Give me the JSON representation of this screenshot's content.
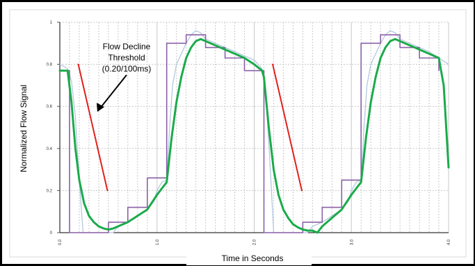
{
  "chart_data": {
    "type": "line",
    "title": "",
    "xlabel": "Time in Seconds",
    "ylabel": "Normalized Flow Signal",
    "xlim": [
      0,
      4.0
    ],
    "ylim": [
      0,
      1
    ],
    "x_tick_labels": [
      "0.0",
      "1.0",
      "2.0",
      "3.0",
      "4.0"
    ],
    "y_tick_labels": [
      "0",
      "0.2",
      "0.4",
      "0.6",
      "0.8",
      "1"
    ],
    "grid": true,
    "legend": "none",
    "annotation": {
      "lines": [
        "Flow Decline",
        "Threshold",
        "(0.20/100ms)"
      ]
    },
    "series": [
      {
        "color": "#b4c8de",
        "style": "thin",
        "points": [
          [
            0.0,
            0.8
          ],
          [
            0.08,
            0.78
          ],
          [
            0.12,
            0.72
          ],
          [
            0.16,
            0.55
          ],
          [
            0.2,
            0.25
          ],
          [
            0.24,
            0.0
          ],
          [
            0.3,
            0.0
          ],
          [
            0.55,
            0.0
          ],
          [
            0.6,
            0.03
          ],
          [
            0.7,
            0.05
          ],
          [
            0.8,
            0.08
          ],
          [
            0.9,
            0.11
          ],
          [
            0.97,
            0.15
          ],
          [
            1.0,
            0.2
          ],
          [
            1.05,
            0.24
          ],
          [
            1.1,
            0.25
          ],
          [
            1.13,
            0.5
          ],
          [
            1.16,
            0.7
          ],
          [
            1.2,
            0.8
          ],
          [
            1.25,
            0.85
          ],
          [
            1.3,
            0.9
          ],
          [
            1.35,
            0.94
          ],
          [
            1.4,
            0.96
          ],
          [
            1.45,
            0.95
          ],
          [
            1.5,
            0.92
          ],
          [
            1.6,
            0.9
          ],
          [
            1.7,
            0.88
          ],
          [
            1.8,
            0.86
          ],
          [
            1.9,
            0.84
          ],
          [
            2.0,
            0.82
          ],
          [
            2.08,
            0.78
          ],
          [
            2.12,
            0.65
          ],
          [
            2.16,
            0.35
          ],
          [
            2.2,
            0.0
          ],
          [
            2.3,
            0.0
          ],
          [
            2.55,
            0.0
          ],
          [
            2.6,
            0.03
          ],
          [
            2.7,
            0.05
          ],
          [
            2.8,
            0.08
          ],
          [
            2.9,
            0.11
          ],
          [
            2.97,
            0.15
          ],
          [
            3.0,
            0.2
          ],
          [
            3.05,
            0.24
          ],
          [
            3.1,
            0.25
          ],
          [
            3.13,
            0.5
          ],
          [
            3.16,
            0.7
          ],
          [
            3.2,
            0.8
          ],
          [
            3.25,
            0.85
          ],
          [
            3.3,
            0.9
          ],
          [
            3.35,
            0.94
          ],
          [
            3.4,
            0.96
          ],
          [
            3.45,
            0.95
          ],
          [
            3.5,
            0.92
          ],
          [
            3.6,
            0.9
          ],
          [
            3.7,
            0.88
          ],
          [
            3.8,
            0.86
          ],
          [
            3.9,
            0.83
          ],
          [
            4.0,
            0.8
          ]
        ]
      },
      {
        "color": "#8b5fa8",
        "style": "step",
        "points": [
          [
            0.0,
            0.77
          ],
          [
            0.1,
            0.77
          ],
          [
            0.1,
            0.0
          ],
          [
            0.5,
            0.0
          ],
          [
            0.5,
            0.05
          ],
          [
            0.7,
            0.05
          ],
          [
            0.7,
            0.12
          ],
          [
            0.9,
            0.12
          ],
          [
            0.9,
            0.26
          ],
          [
            1.1,
            0.26
          ],
          [
            1.1,
            0.9
          ],
          [
            1.3,
            0.9
          ],
          [
            1.3,
            0.94
          ],
          [
            1.5,
            0.94
          ],
          [
            1.5,
            0.88
          ],
          [
            1.7,
            0.88
          ],
          [
            1.7,
            0.83
          ],
          [
            1.9,
            0.83
          ],
          [
            1.9,
            0.77
          ],
          [
            2.1,
            0.77
          ],
          [
            2.1,
            0.0
          ],
          [
            2.5,
            0.0
          ],
          [
            2.5,
            0.05
          ],
          [
            2.7,
            0.05
          ],
          [
            2.7,
            0.12
          ],
          [
            2.9,
            0.12
          ],
          [
            2.9,
            0.25
          ],
          [
            3.1,
            0.25
          ],
          [
            3.1,
            0.9
          ],
          [
            3.3,
            0.9
          ],
          [
            3.3,
            0.94
          ],
          [
            3.5,
            0.94
          ],
          [
            3.5,
            0.88
          ],
          [
            3.7,
            0.88
          ],
          [
            3.7,
            0.83
          ],
          [
            3.9,
            0.83
          ],
          [
            3.9,
            0.77
          ]
        ]
      },
      {
        "color": "#1aab4a",
        "style": "thick",
        "points": [
          [
            0.0,
            0.77
          ],
          [
            0.08,
            0.77
          ],
          [
            0.12,
            0.62
          ],
          [
            0.16,
            0.4
          ],
          [
            0.2,
            0.25
          ],
          [
            0.25,
            0.14
          ],
          [
            0.3,
            0.08
          ],
          [
            0.35,
            0.05
          ],
          [
            0.4,
            0.03
          ],
          [
            0.45,
            0.02
          ],
          [
            0.5,
            0.015
          ],
          [
            0.55,
            0.02
          ],
          [
            0.6,
            0.03
          ],
          [
            0.65,
            0.04
          ],
          [
            0.7,
            0.05
          ],
          [
            0.8,
            0.08
          ],
          [
            0.9,
            0.11
          ],
          [
            1.0,
            0.18
          ],
          [
            1.05,
            0.21
          ],
          [
            1.1,
            0.24
          ],
          [
            1.15,
            0.45
          ],
          [
            1.2,
            0.62
          ],
          [
            1.25,
            0.74
          ],
          [
            1.3,
            0.83
          ],
          [
            1.35,
            0.88
          ],
          [
            1.4,
            0.91
          ],
          [
            1.45,
            0.92
          ],
          [
            1.5,
            0.91
          ],
          [
            1.6,
            0.89
          ],
          [
            1.7,
            0.87
          ],
          [
            1.8,
            0.85
          ],
          [
            1.9,
            0.83
          ],
          [
            2.0,
            0.8
          ],
          [
            2.08,
            0.77
          ],
          [
            2.1,
            0.74
          ],
          [
            2.15,
            0.5
          ],
          [
            2.2,
            0.3
          ],
          [
            2.25,
            0.18
          ],
          [
            2.3,
            0.11
          ],
          [
            2.35,
            0.07
          ],
          [
            2.4,
            0.04
          ],
          [
            2.45,
            0.025
          ],
          [
            2.5,
            0.015
          ],
          [
            2.55,
            0.01
          ],
          [
            2.6,
            0.01
          ],
          [
            2.65,
            0.0
          ],
          [
            2.7,
            0.03
          ],
          [
            2.8,
            0.07
          ],
          [
            2.9,
            0.11
          ],
          [
            3.0,
            0.18
          ],
          [
            3.05,
            0.21
          ],
          [
            3.1,
            0.24
          ],
          [
            3.15,
            0.45
          ],
          [
            3.2,
            0.62
          ],
          [
            3.25,
            0.74
          ],
          [
            3.3,
            0.83
          ],
          [
            3.35,
            0.88
          ],
          [
            3.4,
            0.91
          ],
          [
            3.45,
            0.92
          ],
          [
            3.5,
            0.91
          ],
          [
            3.6,
            0.89
          ],
          [
            3.7,
            0.87
          ],
          [
            3.8,
            0.85
          ],
          [
            3.9,
            0.83
          ],
          [
            3.95,
            0.7
          ],
          [
            4.0,
            0.31
          ]
        ]
      },
      {
        "color": "#e0201a",
        "style": "segment",
        "points": [
          [
            0.19,
            0.8
          ],
          [
            0.49,
            0.2
          ]
        ]
      },
      {
        "color": "#e0201a",
        "style": "segment",
        "points": [
          [
            2.19,
            0.8
          ],
          [
            2.49,
            0.2
          ]
        ]
      }
    ]
  }
}
